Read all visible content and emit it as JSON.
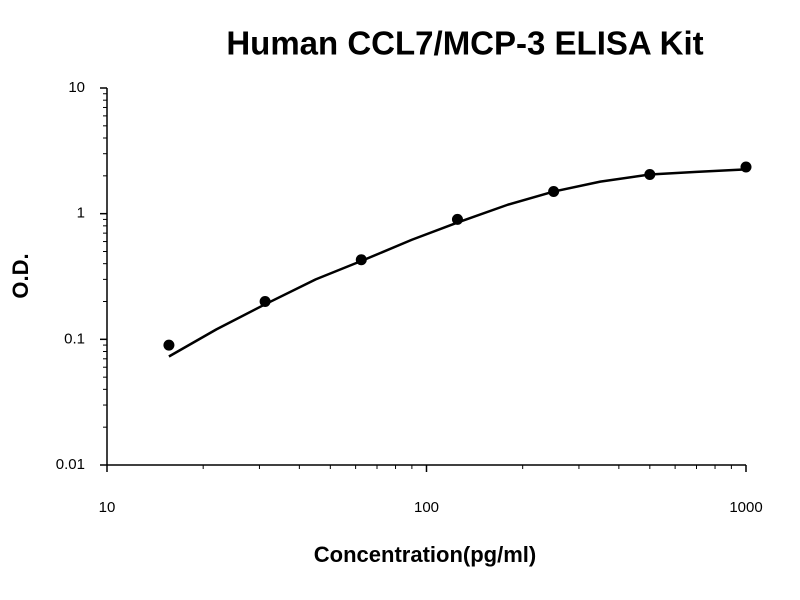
{
  "chart_data": {
    "type": "scatter",
    "title": "Human CCL7/MCP-3 ELISA Kit",
    "x_label": "Concentration(pg/ml)",
    "y_label": "O.D.",
    "log_x": true,
    "log_y": true,
    "xlim": [
      10,
      1000
    ],
    "xticks": [
      10,
      100,
      1000
    ],
    "xminorticks": [
      20,
      30,
      40,
      50,
      60,
      70,
      80,
      90,
      200,
      300,
      400,
      500,
      600,
      700,
      800,
      900
    ],
    "ylim": [
      0.01,
      10
    ],
    "yticks": [
      0.01,
      0.1,
      1,
      10
    ],
    "yminorticks": [
      0.02,
      0.03,
      0.04,
      0.05,
      0.06,
      0.07,
      0.08,
      0.09,
      0.2,
      0.3,
      0.4,
      0.5,
      0.6,
      0.7,
      0.8,
      0.9,
      2,
      3,
      4,
      5,
      6,
      7,
      8,
      9
    ],
    "x": [
      15.625,
      31.25,
      62.5,
      125,
      250,
      500,
      1000
    ],
    "series": [
      {
        "type": "scatter",
        "color": "#000000",
        "values": [
          0.09,
          0.2,
          0.43,
          0.9,
          1.5,
          2.05,
          2.35
        ]
      },
      {
        "type": "line",
        "color": "#000000",
        "x": [
          15.625,
          22,
          31.25,
          45,
          62.5,
          90,
          125,
          180,
          250,
          350,
          500,
          700,
          1000
        ],
        "values": [
          0.073,
          0.12,
          0.19,
          0.3,
          0.42,
          0.62,
          0.85,
          1.18,
          1.5,
          1.8,
          2.05,
          2.15,
          2.25
        ]
      }
    ]
  }
}
